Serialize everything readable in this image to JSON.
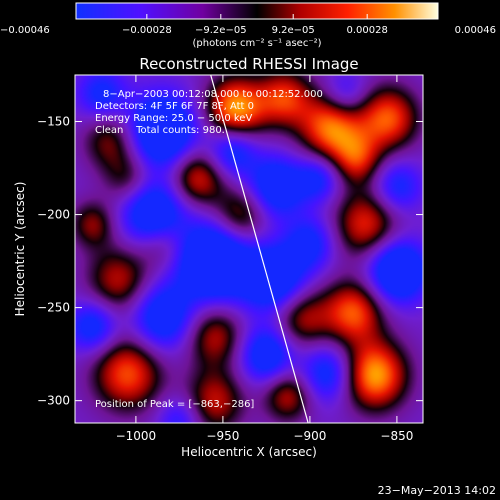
{
  "chart_data": {
    "type": "heatmap",
    "title": "Reconstructed RHESSI Image",
    "xlabel": "Heliocentric X (arcsec)",
    "ylabel": "Heliocentric Y (arcsec)",
    "xlim": [
      -1035,
      -835
    ],
    "ylim": [
      -312,
      -125
    ],
    "xticks": [
      -1000,
      -950,
      -900,
      -850
    ],
    "xtick_labels": [
      "−1000",
      "−950",
      "−900",
      "−850"
    ],
    "yticks": [
      -150,
      -200,
      -250,
      -300
    ],
    "ytick_labels": [
      "−150",
      "−200",
      "−250",
      "−300"
    ],
    "colorbar": {
      "min": -0.00046,
      "max": 0.00046,
      "ticks": [
        -0.00046,
        -0.00028,
        -9.2e-05,
        9.2e-05,
        0.00028,
        0.00046
      ],
      "tick_labels": [
        "−0.00046",
        "−0.00028",
        "−9.2e−05",
        "9.2e−05",
        "0.00028",
        "0.00046"
      ],
      "unit_label": "(photons cm⁻² s⁻¹ asec⁻²)"
    },
    "annotations": [
      "8−Apr−2003 00:12:08.000 to 00:12:52.000",
      "Detectors: 4F 5F 6F 7F 8F, Att 0",
      "Energy Range: 25.0 − 50.0 keV",
      "Clean    Total counts: 980."
    ],
    "peak_label": "Position of Peak = [−863,−286]",
    "peak": [
      -863,
      -286
    ],
    "limb_line": [
      [
        -957,
        -125
      ],
      [
        -901,
        -312
      ]
    ],
    "blobs": [
      {
        "x": -943,
        "y": -143,
        "v": 1.0,
        "s": 12
      },
      {
        "x": -915,
        "y": -137,
        "v": 0.7,
        "s": 11
      },
      {
        "x": -888,
        "y": -153,
        "v": 0.9,
        "s": 13
      },
      {
        "x": -855,
        "y": -148,
        "v": 0.8,
        "s": 12
      },
      {
        "x": -873,
        "y": -170,
        "v": 0.6,
        "s": 10
      },
      {
        "x": -1015,
        "y": -160,
        "v": 0.5,
        "s": 11
      },
      {
        "x": -1005,
        "y": -180,
        "v": 0.4,
        "s": 10
      },
      {
        "x": -965,
        "y": -180,
        "v": 0.7,
        "s": 11
      },
      {
        "x": -940,
        "y": -200,
        "v": 0.6,
        "s": 11
      },
      {
        "x": -1010,
        "y": -235,
        "v": 0.6,
        "s": 13
      },
      {
        "x": -985,
        "y": -215,
        "v": 0.4,
        "s": 10
      },
      {
        "x": -955,
        "y": -265,
        "v": 0.6,
        "s": 12
      },
      {
        "x": -905,
        "y": -255,
        "v": 0.6,
        "s": 12
      },
      {
        "x": -868,
        "y": -205,
        "v": 0.7,
        "s": 13
      },
      {
        "x": -875,
        "y": -252,
        "v": 0.8,
        "s": 12
      },
      {
        "x": -1005,
        "y": -285,
        "v": 0.8,
        "s": 14
      },
      {
        "x": -955,
        "y": -300,
        "v": 0.6,
        "s": 12
      },
      {
        "x": -913,
        "y": -297,
        "v": 0.6,
        "s": 10
      },
      {
        "x": -863,
        "y": -286,
        "v": 1.0,
        "s": 13
      },
      {
        "x": -1025,
        "y": -205,
        "v": 0.5,
        "s": 9
      },
      {
        "x": -985,
        "y": -155,
        "v": -0.9,
        "s": 14
      },
      {
        "x": -990,
        "y": -200,
        "v": -0.8,
        "s": 13
      },
      {
        "x": -945,
        "y": -165,
        "v": -0.6,
        "s": 10
      },
      {
        "x": -955,
        "y": -225,
        "v": -1.0,
        "s": 15
      },
      {
        "x": -920,
        "y": -185,
        "v": -0.7,
        "s": 12
      },
      {
        "x": -985,
        "y": -255,
        "v": -0.7,
        "s": 13
      },
      {
        "x": -920,
        "y": -235,
        "v": -0.8,
        "s": 13
      },
      {
        "x": -900,
        "y": -215,
        "v": -0.5,
        "s": 10
      },
      {
        "x": -895,
        "y": -180,
        "v": -0.5,
        "s": 9
      },
      {
        "x": -850,
        "y": -230,
        "v": -0.9,
        "s": 12
      },
      {
        "x": -850,
        "y": -185,
        "v": -0.5,
        "s": 10
      },
      {
        "x": -925,
        "y": -275,
        "v": -0.7,
        "s": 11
      },
      {
        "x": -890,
        "y": -285,
        "v": -0.6,
        "s": 11
      },
      {
        "x": -1025,
        "y": -260,
        "v": -0.6,
        "s": 10
      },
      {
        "x": -880,
        "y": -135,
        "v": -0.4,
        "s": 9
      },
      {
        "x": -1020,
        "y": -135,
        "v": -0.5,
        "s": 10
      },
      {
        "x": -975,
        "y": -310,
        "v": -0.4,
        "s": 9
      }
    ]
  },
  "timestamp": "23−May−2013 14:02"
}
